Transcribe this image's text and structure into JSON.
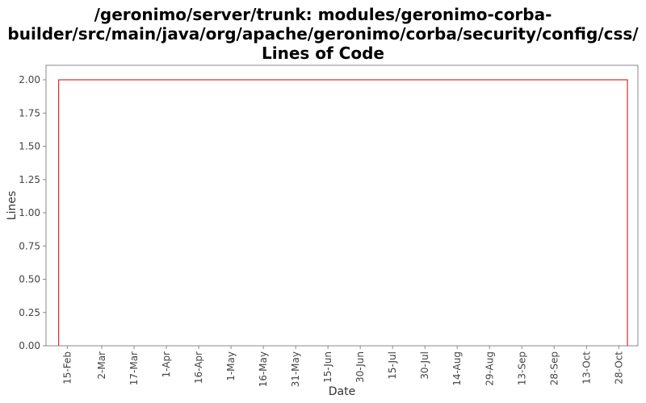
{
  "title_lines": [
    "/geronimo/server/trunk: modules/geronimo-corba-",
    "builder/src/main/java/org/apache/geronimo/corba/security/config/css/",
    "Lines of Code"
  ],
  "chart_data": {
    "type": "line",
    "title": "/geronimo/server/trunk: modules/geronimo-corba-builder/src/main/java/org/apache/geronimo/corba/security/config/css/ Lines of Code",
    "xlabel": "Date",
    "ylabel": "Lines",
    "ylim": [
      0,
      2.0
    ],
    "y_ticks": [
      "0.00",
      "0.25",
      "0.50",
      "0.75",
      "1.00",
      "1.25",
      "1.50",
      "1.75",
      "2.00"
    ],
    "x_ticks": [
      "15-Feb",
      "2-Mar",
      "17-Mar",
      "1-Apr",
      "16-Apr",
      "1-May",
      "16-May",
      "31-May",
      "15-Jun",
      "30-Jun",
      "15-Jul",
      "30-Jul",
      "14-Aug",
      "29-Aug",
      "13-Sep",
      "28-Sep",
      "13-Oct",
      "28-Oct"
    ],
    "series": [
      {
        "color": "#cc0000",
        "points": [
          {
            "x": "11-Feb",
            "y": 0
          },
          {
            "x": "11-Feb",
            "y": 2
          },
          {
            "x": "1-Nov",
            "y": 2
          },
          {
            "x": "1-Nov",
            "y": 0
          }
        ]
      }
    ],
    "grid": false
  }
}
